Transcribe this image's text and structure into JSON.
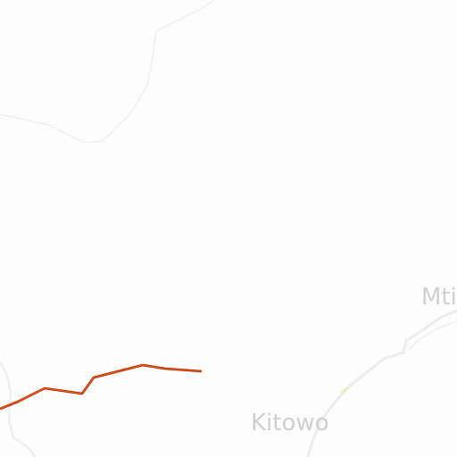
{
  "map": {
    "places": [
      {
        "id": "kitowo",
        "label": "Kitowo"
      },
      {
        "id": "mti",
        "label": "Mti"
      }
    ],
    "colors": {
      "background": "#fdfdfd",
      "road_main": "#e06a00",
      "road_main_casing": "#b30000",
      "road_minor": "#efefef",
      "boundary": "#eeeeee",
      "label": "#cfcfcf"
    }
  }
}
